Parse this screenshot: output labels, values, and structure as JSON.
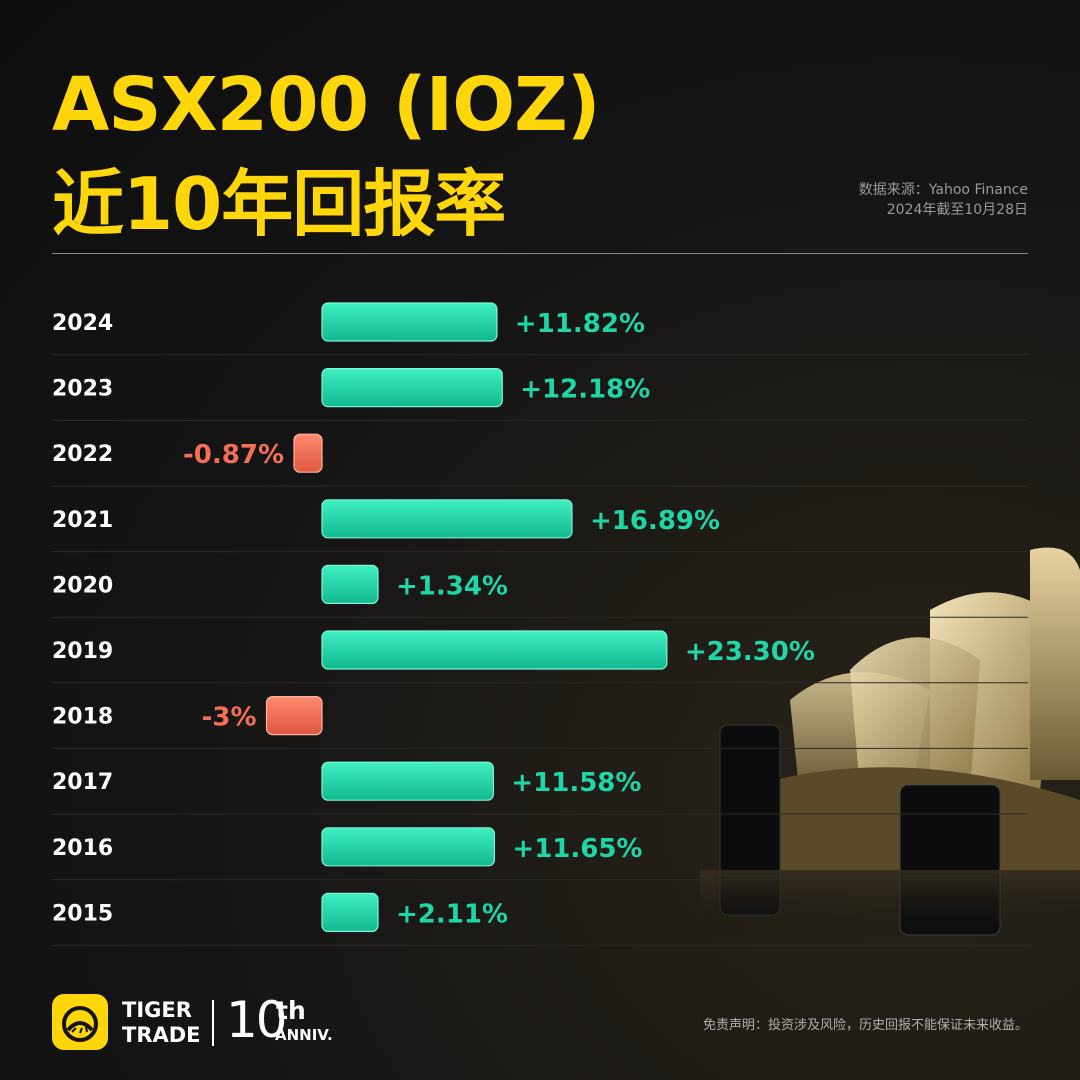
{
  "header": {
    "title_line1": "ASX200 (IOZ)",
    "title_line2": "近10年回报率",
    "source_line1": "数据来源：Yahoo Finance",
    "source_line2": "2024年截至10月28日"
  },
  "colors": {
    "title": "#ffd60a",
    "positive": "#1fd6a8",
    "negative": "#f36f55"
  },
  "chart_data": {
    "type": "bar",
    "orientation": "horizontal",
    "categories": [
      "2024",
      "2023",
      "2022",
      "2021",
      "2020",
      "2019",
      "2018",
      "2017",
      "2016",
      "2015"
    ],
    "values": [
      11.82,
      12.18,
      -0.87,
      16.89,
      1.34,
      23.3,
      -3,
      11.58,
      11.65,
      2.11
    ],
    "labels": [
      "+11.82%",
      "+12.18%",
      "-0.87%",
      "+16.89%",
      "+1.34%",
      "+23.30%",
      "-3%",
      "+11.58%",
      "+11.65%",
      "+2.11%"
    ],
    "title": "",
    "xlabel": "",
    "ylabel": ""
  },
  "footer": {
    "brand_line1": "TIGER",
    "brand_line2": "TRADE",
    "anniv_number": "10",
    "anniv_suffix": "th",
    "anniv_word": "ANNIV.",
    "disclaimer": "免责声明：投资涉及风险，历史回报不能保证未来收益。",
    "logo_icon": "tiger-trade-logo-icon"
  }
}
